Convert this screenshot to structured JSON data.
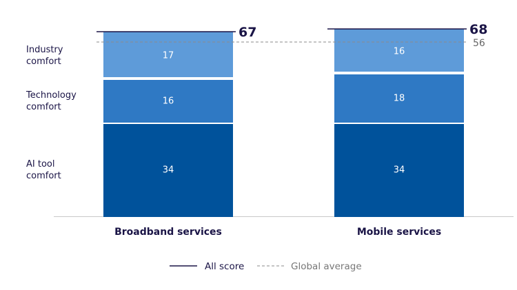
{
  "chart_data": {
    "type": "bar",
    "stacked": true,
    "categories": [
      "Broadband services",
      "Mobile services"
    ],
    "series": [
      {
        "name": "AI tool comfort",
        "values": [
          34,
          34
        ],
        "color": "#00529b"
      },
      {
        "name": "Technology comfort",
        "values": [
          16,
          18
        ],
        "color": "#2f79c4"
      },
      {
        "name": "Industry comfort",
        "values": [
          17,
          16
        ],
        "color": "#5e9bd9"
      }
    ],
    "totals": [
      67,
      68
    ],
    "global_average": 56,
    "legend": {
      "all_score": "All score",
      "global_average": "Global average",
      "placement": "bottom"
    },
    "colors": {
      "total_line": "#1a1446",
      "average_line": "#888888",
      "text": "#1a1446"
    },
    "grid": false
  }
}
